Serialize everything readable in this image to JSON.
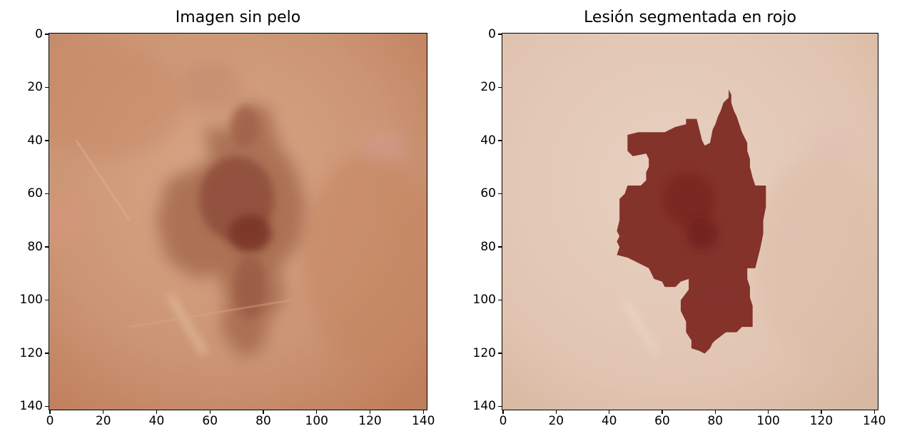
{
  "figure": {
    "panels": [
      {
        "title": "Imagen sin pelo",
        "image_description": "close-up skin photograph with hair removed, brown pigmented lesion in the center",
        "skin_color": "#c9916c",
        "lesion_color": "#8a4a36"
      },
      {
        "title": "Lesión segmentada en rojo",
        "image_description": "same skin image lightened with the segmented lesion overlaid in dark red",
        "skin_color": "#e2c6b4",
        "lesion_color": "#7e2a23"
      }
    ],
    "x_ticks": [
      "0",
      "20",
      "40",
      "60",
      "80",
      "100",
      "120",
      "140"
    ],
    "y_ticks": [
      "0",
      "20",
      "40",
      "60",
      "80",
      "100",
      "120",
      "140"
    ],
    "axis_range": [
      0,
      141
    ]
  }
}
